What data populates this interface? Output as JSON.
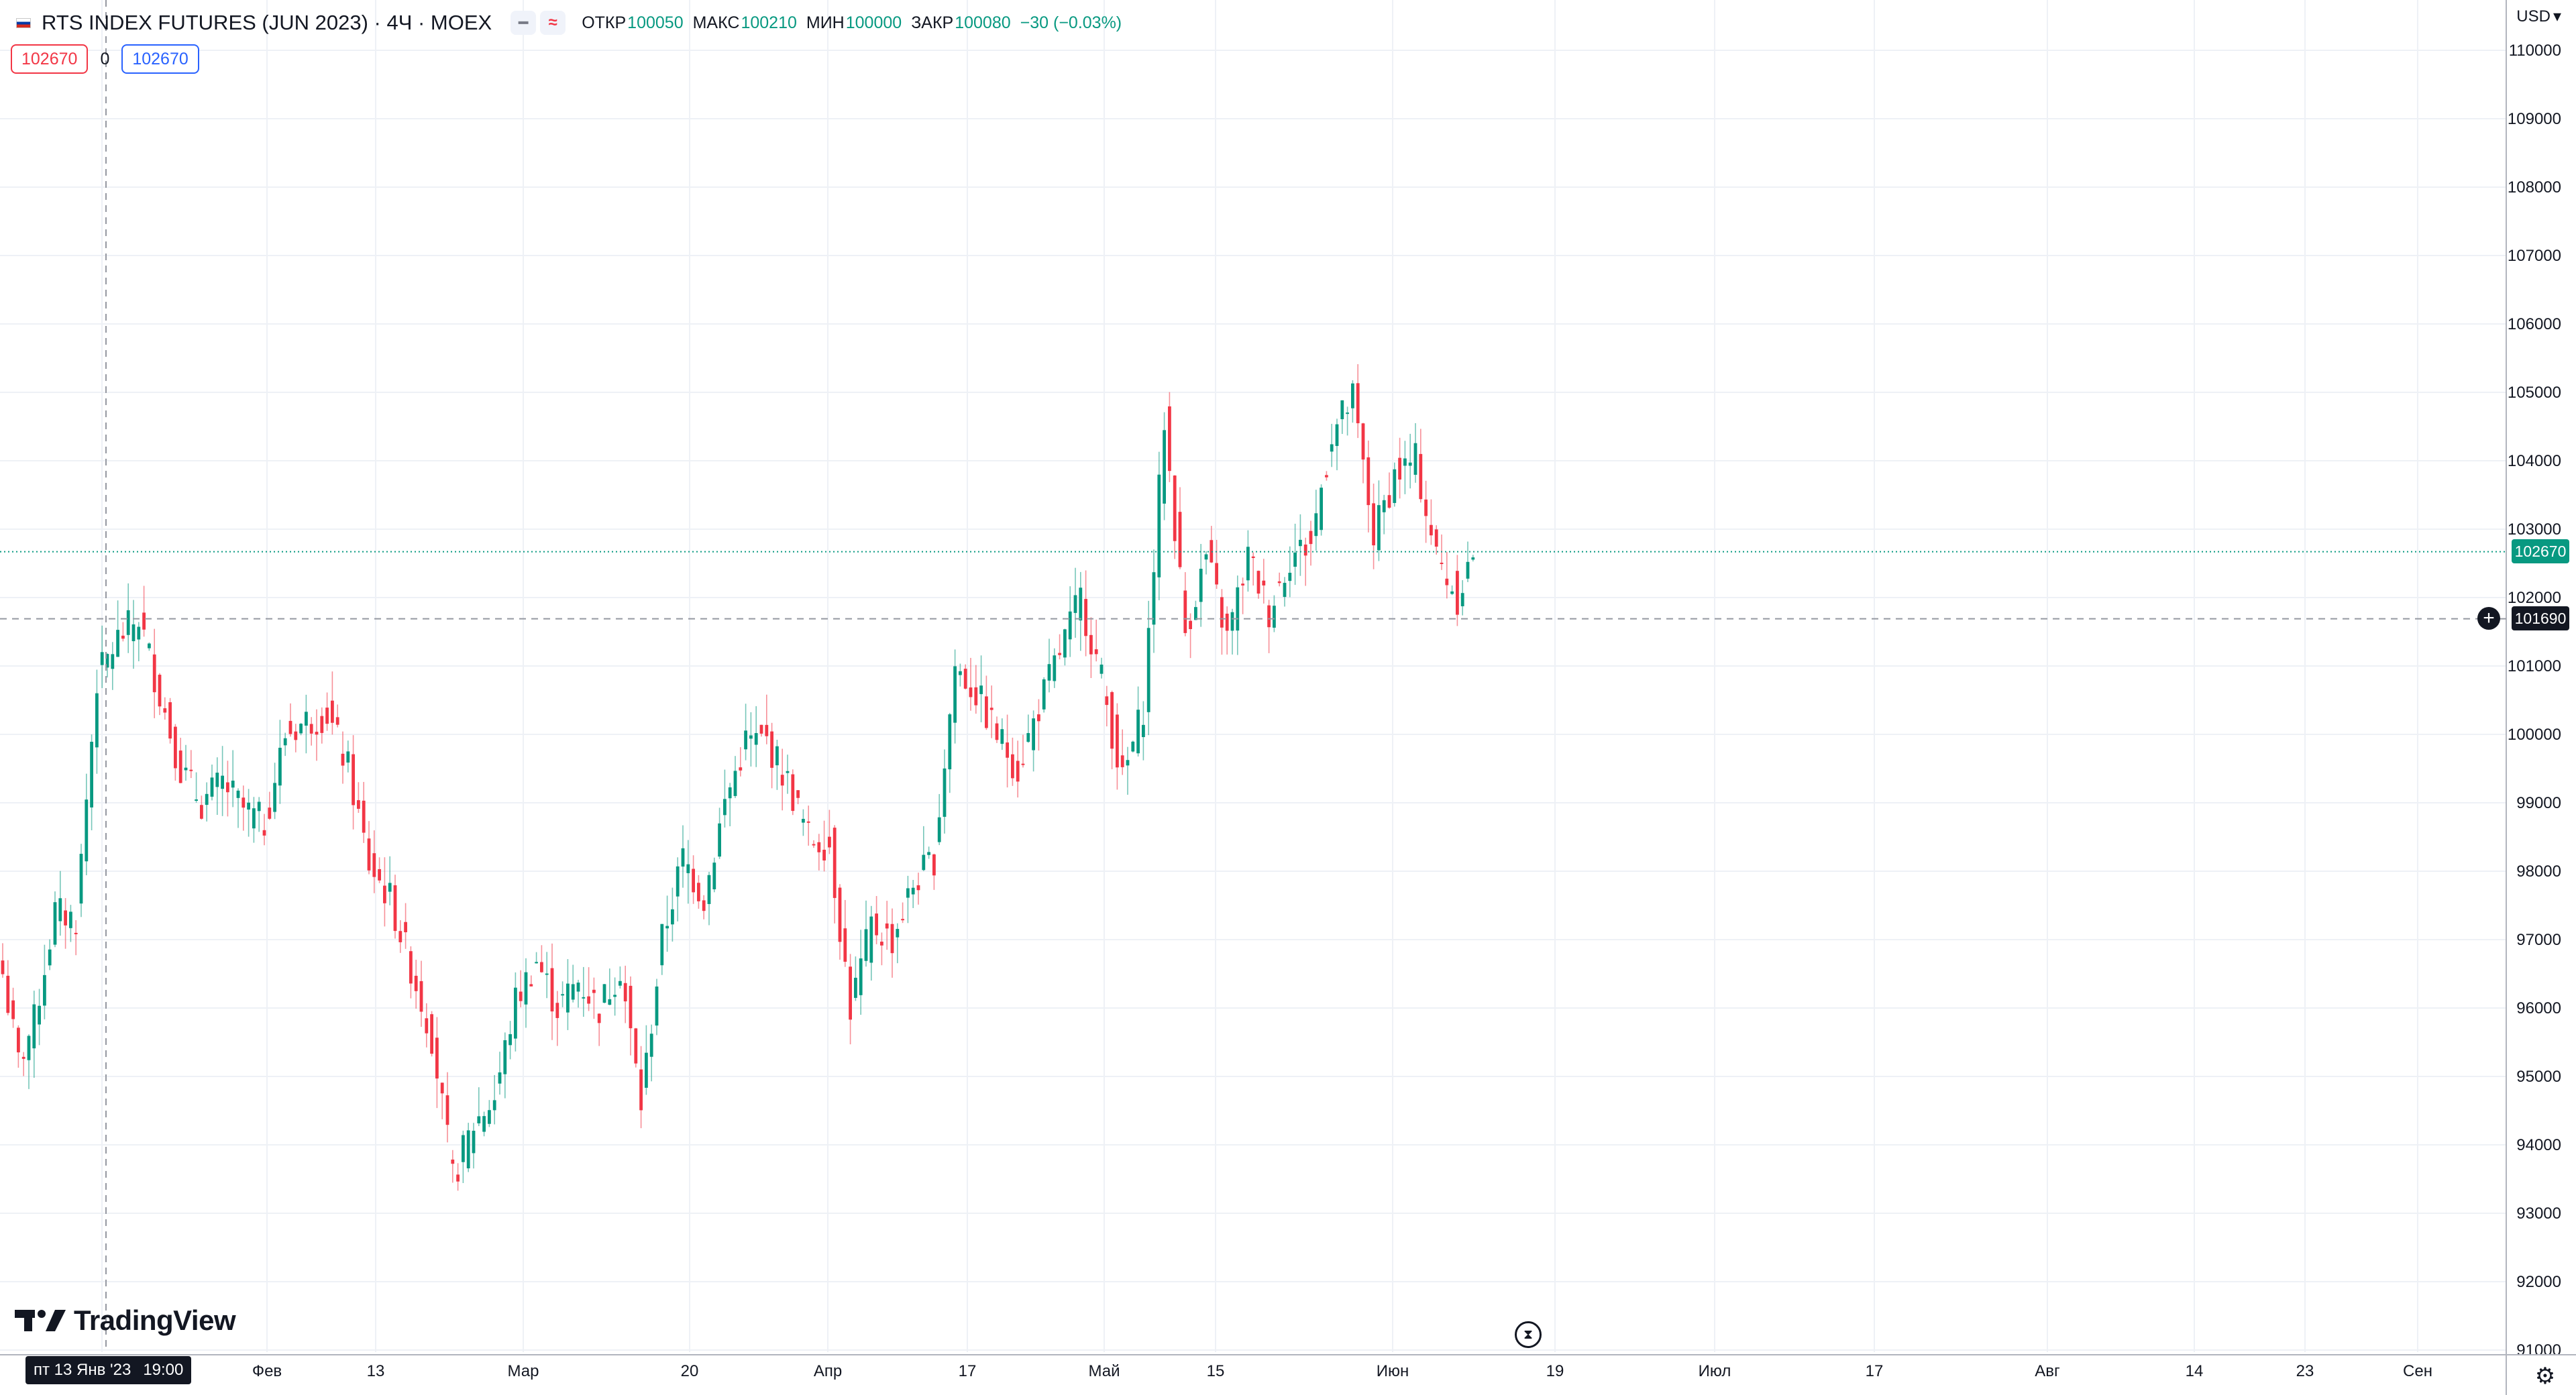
{
  "legend": {
    "symbol": "RTS INDEX FUTURES (JUN 2023) · 4Ч · MOEX",
    "open_label": "ОТКР",
    "open_value": "100050",
    "high_label": "МАКС",
    "high_value": "100210",
    "low_label": "МИН",
    "low_value": "100000",
    "close_label": "ЗАКР",
    "close_value": "100080",
    "change": "−30 (−0.03%)",
    "hide_icon": "minus-icon",
    "source_icon": "wave-icon"
  },
  "trade": {
    "sell_price": "102670",
    "spread": "0",
    "buy_price": "102670"
  },
  "price_axis": {
    "currency": "USD",
    "labels": [
      "110000",
      "109000",
      "108000",
      "107000",
      "106000",
      "105000",
      "104000",
      "103000",
      "102000",
      "101000",
      "100000",
      "99000",
      "98000",
      "97000",
      "96000",
      "95000",
      "94000",
      "93000",
      "92000",
      "91000"
    ],
    "last_price": "102670",
    "crosshair_price": "101690"
  },
  "time_axis": {
    "labels": [
      "Фев",
      "13",
      "Мар",
      "20",
      "Апр",
      "17",
      "Май",
      "15",
      "Июн",
      "19",
      "Июл",
      "17",
      "Авг",
      "14",
      "23",
      "Сен"
    ],
    "crosshair_day": "пт 13 Янв '23",
    "crosshair_time": "19:00"
  },
  "branding": {
    "logo_text": "TradingView"
  },
  "colors": {
    "up": "#089981",
    "down": "#f23645",
    "grid": "#eef1f6",
    "crosshair": "#9598a1"
  },
  "chart_data": {
    "type": "candlestick",
    "ylim": [
      91000,
      110000
    ],
    "close_anchors": [
      {
        "idx": 0,
        "close": 96500
      },
      {
        "idx": 3,
        "close": 95200
      },
      {
        "idx": 6,
        "close": 95800
      },
      {
        "idx": 10,
        "close": 97400
      },
      {
        "idx": 14,
        "close": 97300
      },
      {
        "idx": 18,
        "close": 100800
      },
      {
        "idx": 22,
        "close": 101400
      },
      {
        "idx": 26,
        "close": 101700
      },
      {
        "idx": 30,
        "close": 100600
      },
      {
        "idx": 34,
        "close": 99500
      },
      {
        "idx": 38,
        "close": 99000
      },
      {
        "idx": 42,
        "close": 99300
      },
      {
        "idx": 46,
        "close": 98900
      },
      {
        "idx": 50,
        "close": 98700
      },
      {
        "idx": 54,
        "close": 100000
      },
      {
        "idx": 58,
        "close": 100200
      },
      {
        "idx": 62,
        "close": 100300
      },
      {
        "idx": 66,
        "close": 99500
      },
      {
        "idx": 70,
        "close": 98100
      },
      {
        "idx": 74,
        "close": 97600
      },
      {
        "idx": 78,
        "close": 96600
      },
      {
        "idx": 82,
        "close": 95600
      },
      {
        "idx": 86,
        "close": 93500
      },
      {
        "idx": 90,
        "close": 94300
      },
      {
        "idx": 94,
        "close": 94700
      },
      {
        "idx": 98,
        "close": 96100
      },
      {
        "idx": 102,
        "close": 96700
      },
      {
        "idx": 106,
        "close": 96000
      },
      {
        "idx": 110,
        "close": 96400
      },
      {
        "idx": 114,
        "close": 96000
      },
      {
        "idx": 118,
        "close": 96600
      },
      {
        "idx": 122,
        "close": 94600
      },
      {
        "idx": 126,
        "close": 97000
      },
      {
        "idx": 130,
        "close": 98200
      },
      {
        "idx": 134,
        "close": 97600
      },
      {
        "idx": 138,
        "close": 99000
      },
      {
        "idx": 142,
        "close": 99900
      },
      {
        "idx": 146,
        "close": 99900
      },
      {
        "idx": 150,
        "close": 99300
      },
      {
        "idx": 154,
        "close": 98500
      },
      {
        "idx": 158,
        "close": 98400
      },
      {
        "idx": 162,
        "close": 96000
      },
      {
        "idx": 166,
        "close": 97200
      },
      {
        "idx": 170,
        "close": 97000
      },
      {
        "idx": 174,
        "close": 97800
      },
      {
        "idx": 178,
        "close": 98200
      },
      {
        "idx": 182,
        "close": 101000
      },
      {
        "idx": 186,
        "close": 100600
      },
      {
        "idx": 190,
        "close": 100000
      },
      {
        "idx": 194,
        "close": 99500
      },
      {
        "idx": 198,
        "close": 100400
      },
      {
        "idx": 202,
        "close": 101200
      },
      {
        "idx": 206,
        "close": 102000
      },
      {
        "idx": 210,
        "close": 100800
      },
      {
        "idx": 214,
        "close": 99300
      },
      {
        "idx": 218,
        "close": 100400
      },
      {
        "idx": 222,
        "close": 104600
      },
      {
        "idx": 226,
        "close": 101500
      },
      {
        "idx": 230,
        "close": 102600
      },
      {
        "idx": 234,
        "close": 101400
      },
      {
        "idx": 238,
        "close": 102600
      },
      {
        "idx": 242,
        "close": 101800
      },
      {
        "idx": 246,
        "close": 102600
      },
      {
        "idx": 250,
        "close": 102800
      },
      {
        "idx": 254,
        "close": 104400
      },
      {
        "idx": 258,
        "close": 104900
      },
      {
        "idx": 262,
        "close": 102900
      },
      {
        "idx": 266,
        "close": 103800
      },
      {
        "idx": 270,
        "close": 104000
      },
      {
        "idx": 274,
        "close": 102600
      },
      {
        "idx": 278,
        "close": 102000
      },
      {
        "idx": 281,
        "close": 102670
      }
    ]
  }
}
